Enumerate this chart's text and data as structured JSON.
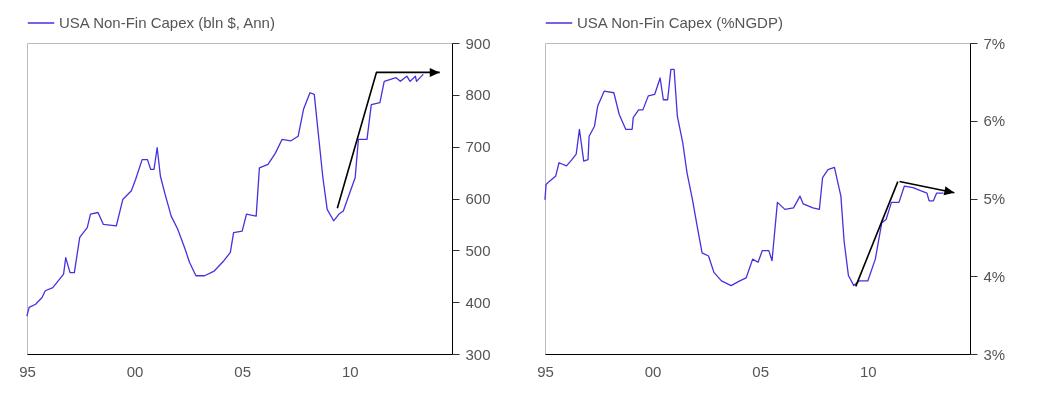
{
  "chart_data": [
    {
      "type": "line",
      "x": [
        1995.0,
        1995.1,
        1995.4,
        1995.7,
        1995.85,
        1996.2,
        1996.45,
        1996.7,
        1996.8,
        1997.0,
        1997.2,
        1997.45,
        1997.8,
        1997.95,
        1998.3,
        1998.55,
        1999.15,
        1999.45,
        1999.85,
        2000.05,
        2000.35,
        2000.6,
        2000.75,
        2000.9,
        2001.05,
        2001.2,
        2001.4,
        2001.7,
        2002.0,
        2002.35,
        2002.55,
        2002.85,
        2003.25,
        2003.7,
        2004.15,
        2004.45,
        2004.6,
        2005.0,
        2005.2,
        2005.65,
        2005.8,
        2006.2,
        2006.55,
        2006.85,
        2007.25,
        2007.6,
        2007.85,
        2008.15,
        2008.35,
        2008.5,
        2008.75,
        2008.95,
        2009.25,
        2009.5,
        2009.7,
        2010.0,
        2010.25,
        2010.4,
        2010.8,
        2011.0,
        2011.4,
        2011.6,
        2012.15,
        2012.35,
        2012.65,
        2012.8,
        2013.05,
        2013.1,
        2013.4
      ],
      "series": [
        {
          "name": "USA Non-Fin Capex (bln $, Ann)",
          "color": "#4433dd",
          "values": [
            374,
            390,
            396,
            409,
            422,
            428,
            441,
            454,
            486,
            457,
            457,
            525,
            544,
            570,
            573,
            550,
            547,
            598,
            615,
            637,
            675,
            675,
            656,
            656,
            698,
            643,
            611,
            566,
            541,
            502,
            477,
            451,
            451,
            460,
            480,
            496,
            534,
            537,
            570,
            566,
            659,
            666,
            688,
            714,
            711,
            720,
            772,
            804,
            801,
            740,
            640,
            579,
            557,
            570,
            576,
            611,
            640,
            714,
            714,
            781,
            785,
            826,
            833,
            826,
            836,
            826,
            836,
            826,
            839
          ]
        }
      ],
      "xlim": [
        1995,
        2014.75
      ],
      "xticks": [
        {
          "value": 1995,
          "label": "95"
        },
        {
          "value": 2000,
          "label": "00"
        },
        {
          "value": 2005,
          "label": "05"
        },
        {
          "value": 2010,
          "label": "10"
        }
      ],
      "ylim": [
        300,
        900
      ],
      "yticks": [
        300,
        400,
        500,
        600,
        700,
        800,
        900
      ],
      "legend": "top"
    },
    {
      "type": "line",
      "x": [
        1995.0,
        1995.05,
        1995.2,
        1995.5,
        1995.65,
        1996.0,
        1996.25,
        1996.45,
        1996.6,
        1996.8,
        1997.0,
        1997.05,
        1997.3,
        1997.45,
        1997.75,
        1998.2,
        1998.45,
        1998.75,
        1999.05,
        1999.1,
        1999.35,
        1999.55,
        1999.8,
        2000.1,
        2000.35,
        2000.5,
        2000.7,
        2000.85,
        2001.0,
        2001.15,
        2001.4,
        2001.6,
        2001.85,
        2002.1,
        2002.3,
        2002.6,
        2002.85,
        2003.2,
        2003.65,
        2004.05,
        2004.35,
        2004.65,
        2004.9,
        2005.1,
        2005.4,
        2005.55,
        2005.8,
        2006.15,
        2006.55,
        2006.85,
        2007.0,
        2007.45,
        2007.75,
        2007.9,
        2008.15,
        2008.45,
        2008.75,
        2008.9,
        2009.1,
        2009.35,
        2009.6,
        2010.0,
        2010.35,
        2010.65,
        2010.85,
        2011.1,
        2011.45,
        2011.7,
        2012.1,
        2012.45,
        2012.75,
        2012.85,
        2013.05,
        2013.2,
        2013.5
      ],
      "series": [
        {
          "name": "USA Non-Fin Capex (%NGDP)",
          "color": "#4433dd",
          "values": [
            4.99,
            5.18,
            5.22,
            5.29,
            5.46,
            5.42,
            5.5,
            5.57,
            5.89,
            5.48,
            5.5,
            5.8,
            5.93,
            6.19,
            6.38,
            6.36,
            6.08,
            5.89,
            5.89,
            6.04,
            6.14,
            6.14,
            6.32,
            6.34,
            6.55,
            6.27,
            6.27,
            6.66,
            6.66,
            6.06,
            5.72,
            5.33,
            4.99,
            4.6,
            4.3,
            4.26,
            4.05,
            3.94,
            3.88,
            3.94,
            3.98,
            4.22,
            4.18,
            4.33,
            4.33,
            4.2,
            4.95,
            4.86,
            4.88,
            5.03,
            4.93,
            4.88,
            4.86,
            5.27,
            5.37,
            5.4,
            5.03,
            4.45,
            4.01,
            3.88,
            3.94,
            3.94,
            4.22,
            4.69,
            4.73,
            4.95,
            4.95,
            5.16,
            5.14,
            5.1,
            5.07,
            4.97,
            4.97,
            5.07,
            5.07
          ]
        }
      ],
      "xlim": [
        1995,
        2014.75
      ],
      "xticks": [
        {
          "value": 1995,
          "label": "95"
        },
        {
          "value": 2000,
          "label": "00"
        },
        {
          "value": 2005,
          "label": "05"
        },
        {
          "value": 2010,
          "label": "10"
        }
      ],
      "ylim": [
        3,
        7
      ],
      "yticks": [
        {
          "value": 3,
          "label": "3%"
        },
        {
          "value": 4,
          "label": "4%"
        },
        {
          "value": 5,
          "label": "5%"
        },
        {
          "value": 6,
          "label": "6%"
        },
        {
          "value": 7,
          "label": "7%"
        }
      ],
      "legend": "top"
    }
  ]
}
